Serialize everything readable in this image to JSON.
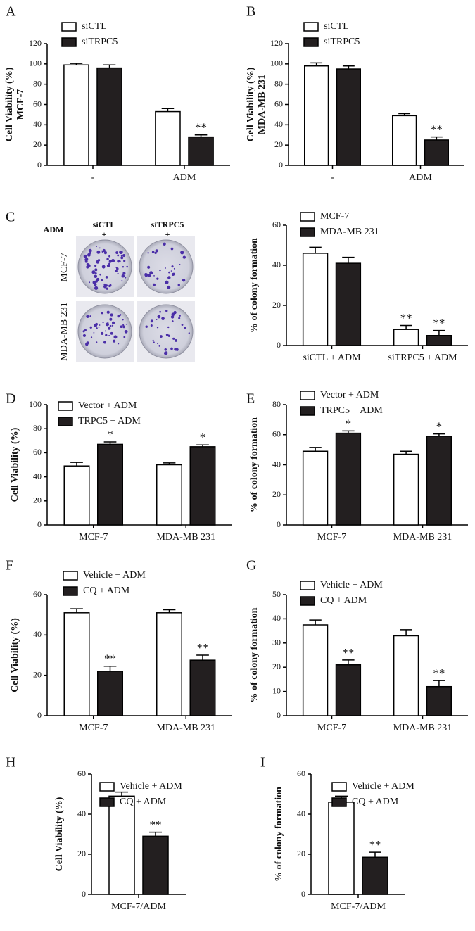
{
  "chart_data": [
    {
      "panel": "A",
      "type": "bar",
      "ylabel": [
        "Cell Viability (%)",
        "MCF-7"
      ],
      "categories": [
        "-",
        "ADM"
      ],
      "series": [
        {
          "name": "siCTL",
          "color": "#ffffff",
          "values": [
            99,
            53
          ],
          "errors": [
            1.5,
            3
          ],
          "significance": [
            null,
            null
          ]
        },
        {
          "name": "siTRPC5",
          "color": "#231f20",
          "values": [
            96,
            28
          ],
          "errors": [
            3,
            2
          ],
          "significance": [
            null,
            "**"
          ]
        }
      ],
      "ylim": [
        0,
        120
      ],
      "yticks": [
        0,
        20,
        40,
        60,
        80,
        100,
        120
      ]
    },
    {
      "panel": "B",
      "type": "bar",
      "ylabel": [
        "Cell Viability (%)",
        "MDA-MB 231"
      ],
      "categories": [
        "-",
        "ADM"
      ],
      "series": [
        {
          "name": "siCTL",
          "color": "#ffffff",
          "values": [
            98,
            49
          ],
          "errors": [
            3,
            2
          ],
          "significance": [
            null,
            null
          ]
        },
        {
          "name": "siTRPC5",
          "color": "#231f20",
          "values": [
            95,
            25
          ],
          "errors": [
            3,
            3
          ],
          "significance": [
            null,
            "**"
          ]
        }
      ],
      "ylim": [
        0,
        120
      ],
      "yticks": [
        0,
        20,
        40,
        60,
        80,
        100,
        120
      ]
    },
    {
      "panel": "C",
      "type": "bar",
      "ylabel": [
        "% of colony formation"
      ],
      "categories": [
        "siCTL + ADM",
        "siTRPC5 + ADM"
      ],
      "series": [
        {
          "name": "MCF-7",
          "color": "#ffffff",
          "values": [
            46,
            8
          ],
          "errors": [
            3,
            2
          ],
          "significance": [
            null,
            "**"
          ]
        },
        {
          "name": "MDA-MB 231",
          "color": "#231f20",
          "values": [
            41,
            5
          ],
          "errors": [
            3,
            2.5
          ],
          "significance": [
            null,
            "**"
          ]
        }
      ],
      "ylim": [
        0,
        60
      ],
      "yticks": [
        0,
        20,
        40,
        60
      ]
    },
    {
      "panel": "D",
      "type": "bar",
      "ylabel": [
        "Cell Viability (%)"
      ],
      "categories": [
        "MCF-7",
        "MDA-MB 231"
      ],
      "series": [
        {
          "name": "Vector + ADM",
          "color": "#ffffff",
          "values": [
            49,
            50
          ],
          "errors": [
            3,
            1.5
          ],
          "significance": [
            null,
            null
          ]
        },
        {
          "name": "TRPC5 + ADM",
          "color": "#231f20",
          "values": [
            67,
            65
          ],
          "errors": [
            2,
            1.5
          ],
          "significance": [
            "*",
            "*"
          ]
        }
      ],
      "ylim": [
        0,
        100
      ],
      "yticks": [
        0,
        20,
        40,
        60,
        80,
        100
      ]
    },
    {
      "panel": "E",
      "type": "bar",
      "ylabel": [
        "% of colony formation"
      ],
      "categories": [
        "MCF-7",
        "MDA-MB 231"
      ],
      "series": [
        {
          "name": "Vector + ADM",
          "color": "#ffffff",
          "values": [
            49,
            47
          ],
          "errors": [
            2.5,
            2
          ],
          "significance": [
            null,
            null
          ]
        },
        {
          "name": "TRPC5 + ADM",
          "color": "#231f20",
          "values": [
            61,
            59
          ],
          "errors": [
            1.5,
            1.5
          ],
          "significance": [
            "*",
            "*"
          ]
        }
      ],
      "ylim": [
        0,
        80
      ],
      "yticks": [
        0,
        20,
        40,
        60,
        80
      ]
    },
    {
      "panel": "F",
      "type": "bar",
      "ylabel": [
        "Cell Viability (%)"
      ],
      "categories": [
        "MCF-7",
        "MDA-MB 231"
      ],
      "series": [
        {
          "name": "Vehicle + ADM",
          "color": "#ffffff",
          "values": [
            51,
            51
          ],
          "errors": [
            2,
            1.5
          ],
          "significance": [
            null,
            null
          ]
        },
        {
          "name": "CQ + ADM",
          "color": "#231f20",
          "values": [
            22,
            27.5
          ],
          "errors": [
            2.5,
            2.5
          ],
          "significance": [
            "**",
            "**"
          ]
        }
      ],
      "ylim": [
        0,
        60
      ],
      "yticks": [
        0,
        20,
        40,
        60
      ]
    },
    {
      "panel": "G",
      "type": "bar",
      "ylabel": [
        "% of colony formation"
      ],
      "categories": [
        "MCF-7",
        "MDA-MB 231"
      ],
      "series": [
        {
          "name": "Vehicle + ADM",
          "color": "#ffffff",
          "values": [
            37.5,
            33
          ],
          "errors": [
            2,
            2.5
          ],
          "significance": [
            null,
            null
          ]
        },
        {
          "name": "CQ + ADM",
          "color": "#231f20",
          "values": [
            21,
            12
          ],
          "errors": [
            2,
            2.5
          ],
          "significance": [
            "**",
            "**"
          ]
        }
      ],
      "ylim": [
        0,
        50
      ],
      "yticks": [
        0,
        10,
        20,
        30,
        40,
        50
      ]
    },
    {
      "panel": "H",
      "type": "bar",
      "ylabel": [
        "Cell Viability (%)"
      ],
      "categories": [
        "MCF-7/ADM"
      ],
      "series": [
        {
          "name": "Vehicle + ADM",
          "color": "#ffffff",
          "values": [
            49
          ],
          "errors": [
            2
          ],
          "significance": [
            null
          ]
        },
        {
          "name": "CQ + ADM",
          "color": "#231f20",
          "values": [
            29
          ],
          "errors": [
            2
          ],
          "significance": [
            "**"
          ]
        }
      ],
      "ylim": [
        0,
        60
      ],
      "yticks": [
        0,
        20,
        40,
        60
      ]
    },
    {
      "panel": "I",
      "type": "bar",
      "ylabel": [
        "% of colony formation"
      ],
      "categories": [
        "MCF-7/ADM"
      ],
      "series": [
        {
          "name": "Vehicle + ADM",
          "color": "#ffffff",
          "values": [
            46
          ],
          "errors": [
            3
          ],
          "significance": [
            null
          ]
        },
        {
          "name": "CQ + ADM",
          "color": "#231f20",
          "values": [
            18.5
          ],
          "errors": [
            2.5
          ],
          "significance": [
            "**"
          ]
        }
      ],
      "ylim": [
        0,
        60
      ],
      "yticks": [
        0,
        20,
        40,
        60
      ]
    }
  ],
  "colony_images": {
    "columns": [
      "siCTL",
      "siTRPC5"
    ],
    "treatment": "ADM",
    "treatment_marks": [
      "+",
      "+"
    ],
    "rows": [
      "MCF-7",
      "MDA-MB 231"
    ]
  }
}
